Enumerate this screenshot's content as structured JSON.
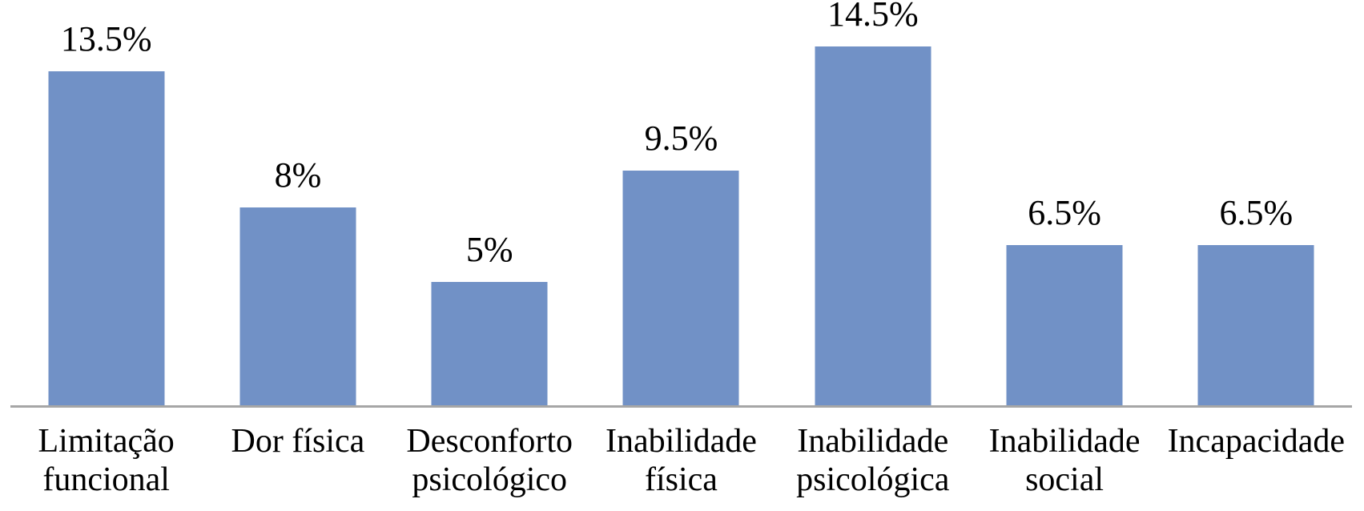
{
  "chart_data": {
    "type": "bar",
    "categories": [
      "Limitação funcional",
      "Dor física",
      "Desconforto psicológico",
      "Inabilidade física",
      "Inabilidade psicológica",
      "Inabilidade social",
      "Incapacidade"
    ],
    "categories_lines": [
      [
        "Limitação",
        "funcional"
      ],
      [
        "Dor física"
      ],
      [
        "Desconforto",
        "psicológico"
      ],
      [
        "Inabilidade",
        "física"
      ],
      [
        "Inabilidade",
        "psicológica"
      ],
      [
        "Inabilidade",
        "social"
      ],
      [
        "Incapacidade"
      ]
    ],
    "values": [
      13.5,
      8,
      5,
      9.5,
      14.5,
      6.5,
      6.5
    ],
    "value_labels": [
      "13.5%",
      "8%",
      "5%",
      "9.5%",
      "14.5%",
      "6.5%",
      "6.5%"
    ],
    "title": "",
    "xlabel": "",
    "ylabel": "",
    "ylim": [
      0,
      16.4
    ],
    "grid": false,
    "legend": false,
    "colors": {
      "bar": "#7191C6",
      "axis_line": "#A6A6A6",
      "text": "#000000",
      "background": "#FFFFFF"
    }
  }
}
